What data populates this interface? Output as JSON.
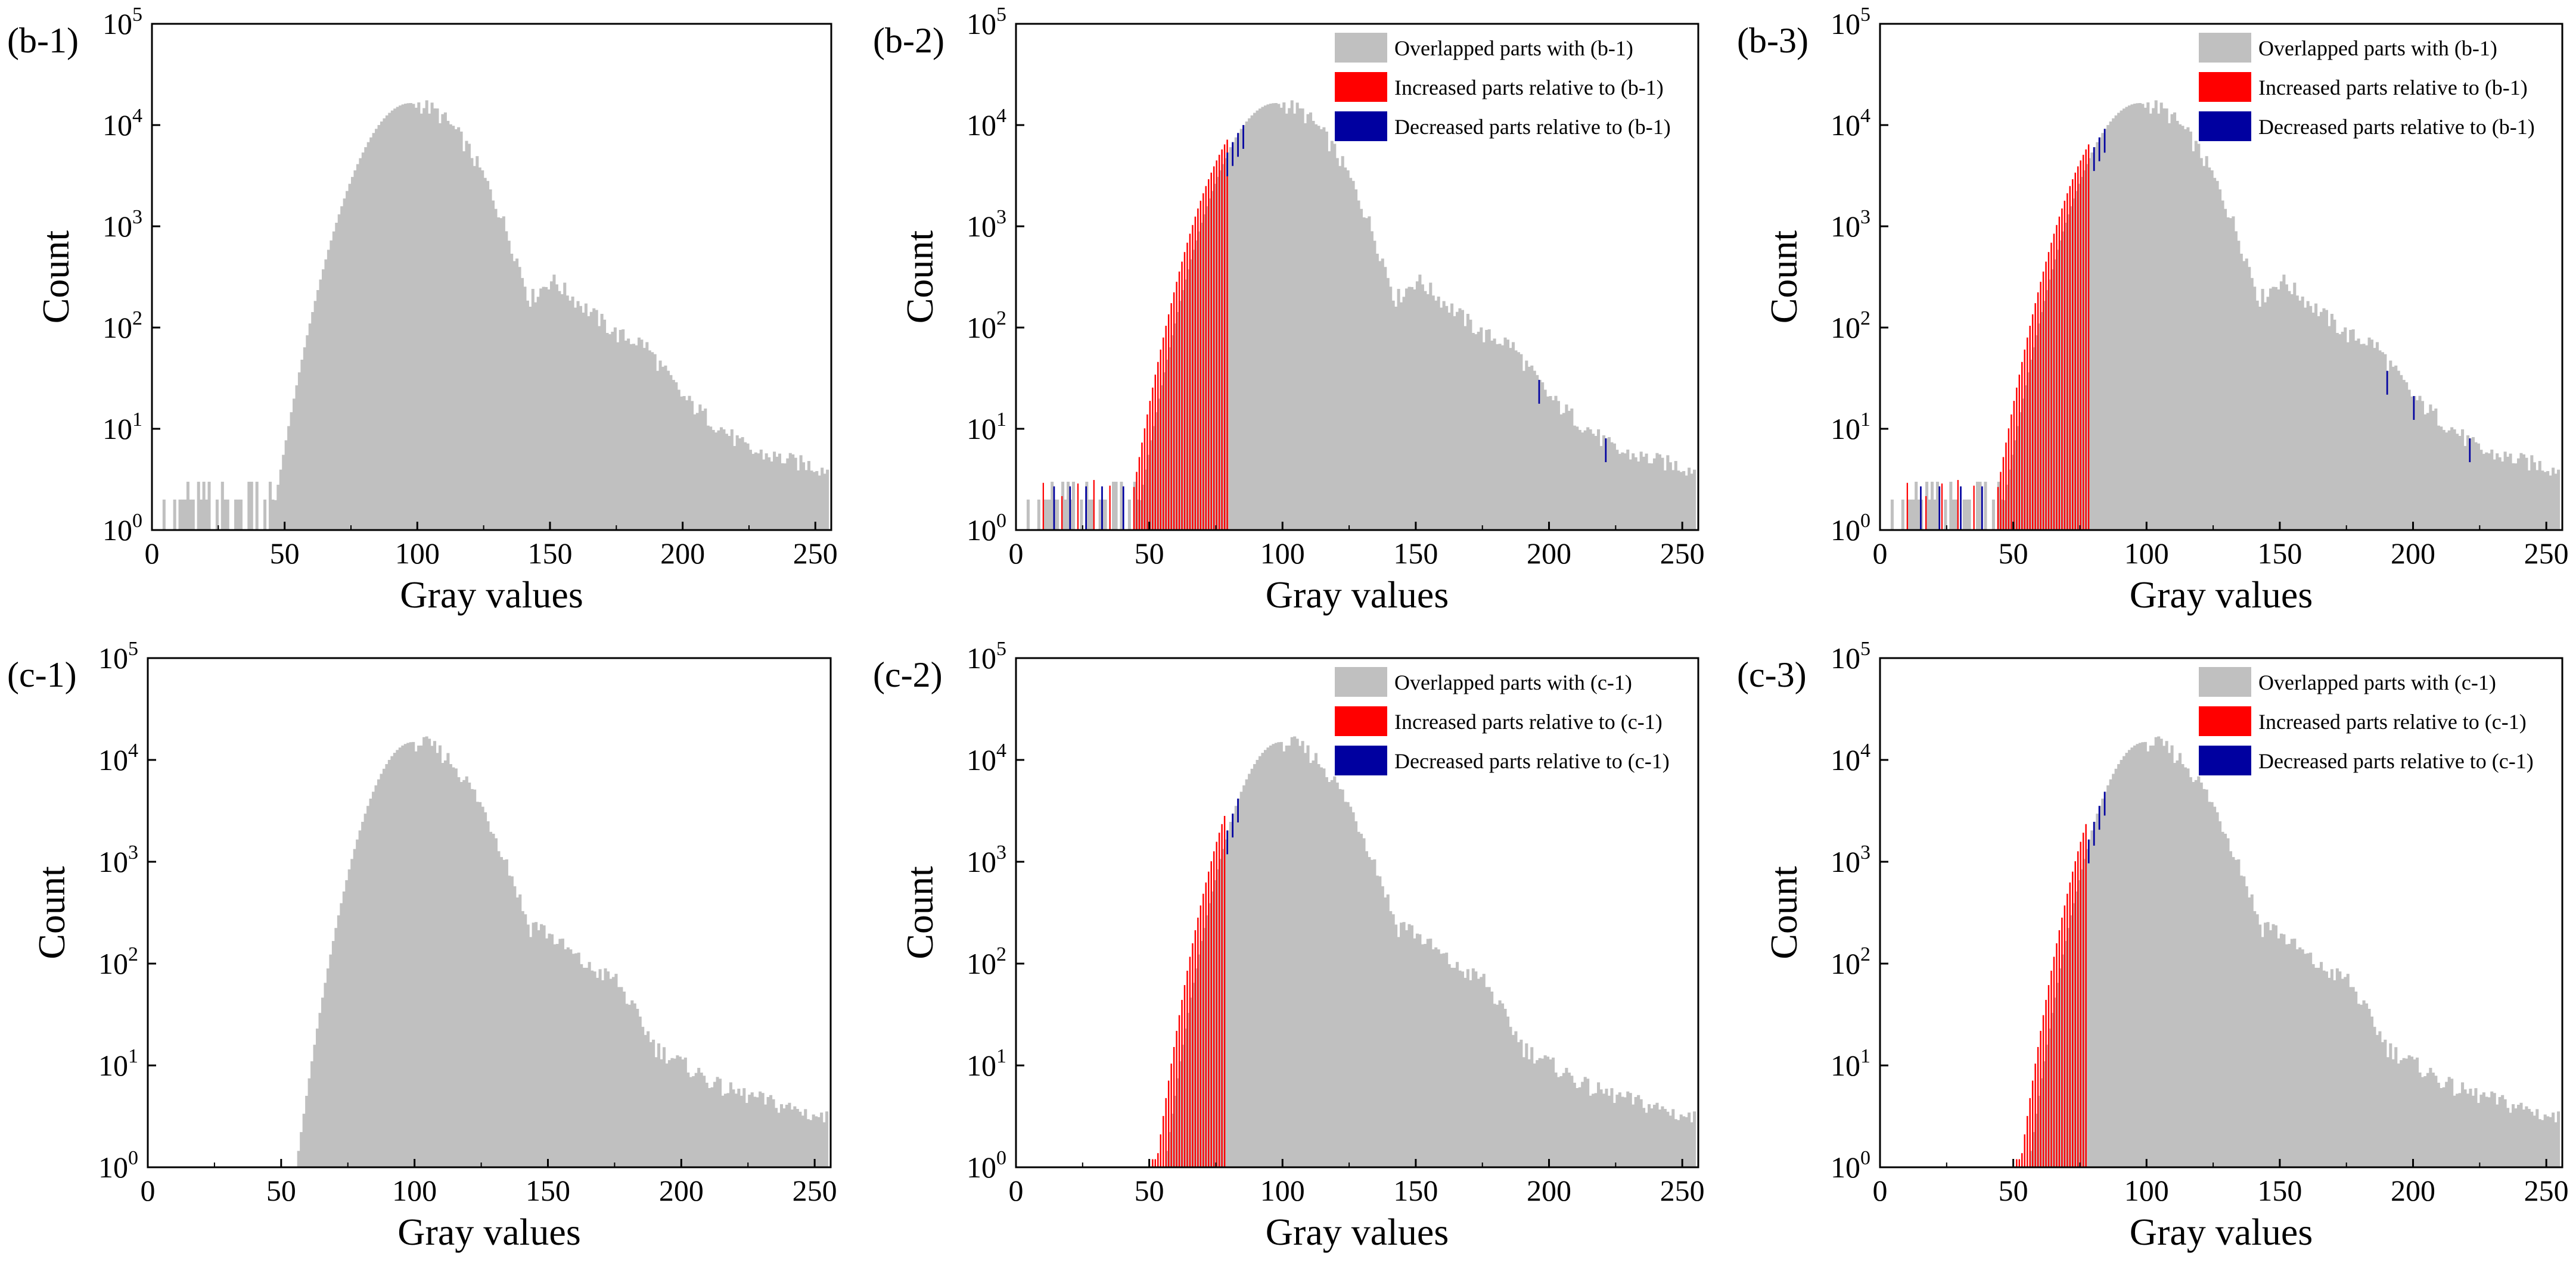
{
  "colors": {
    "overlap": "#c0c0c0",
    "increase": "#ff0000",
    "decrease": "#0000a0",
    "axis": "#000000"
  },
  "chart_data": [
    {
      "id": "b1",
      "panel_label": "(b-1)",
      "type": "histogram",
      "xlabel": "Gray values",
      "ylabel": "Count",
      "yscale": "log",
      "xlim": [
        0,
        256
      ],
      "ylim": [
        1,
        100000
      ],
      "xticks": [
        "0",
        "50",
        "100",
        "150",
        "200",
        "250"
      ],
      "yticks": [
        {
          "base": "10",
          "exp": "0"
        },
        {
          "base": "10",
          "exp": "1"
        },
        {
          "base": "10",
          "exp": "2"
        },
        {
          "base": "10",
          "exp": "3"
        },
        {
          "base": "10",
          "exp": "4"
        },
        {
          "base": "10",
          "exp": "5"
        }
      ],
      "legend": [],
      "distribution": {
        "peak_x": 97,
        "peak_count": 16500,
        "sigma_left": 12,
        "sigma_right": 15,
        "tail": [
          [
            150,
            300
          ],
          [
            175,
            85
          ],
          [
            185,
            70
          ],
          [
            200,
            20
          ],
          [
            225,
            6
          ],
          [
            254,
            4
          ]
        ],
        "start_x": 46,
        "noise_below": 1,
        "noise_above": 1
      },
      "diff": {
        "increase_from": 0,
        "increase_to": 0,
        "decrease_at": []
      }
    },
    {
      "id": "b2",
      "panel_label": "(b-2)",
      "type": "histogram",
      "xlabel": "Gray values",
      "ylabel": "Count",
      "yscale": "log",
      "xlim": [
        0,
        256
      ],
      "ylim": [
        1,
        100000
      ],
      "xticks": [
        "0",
        "50",
        "100",
        "150",
        "200",
        "250"
      ],
      "yticks": [
        {
          "base": "10",
          "exp": "0"
        },
        {
          "base": "10",
          "exp": "1"
        },
        {
          "base": "10",
          "exp": "2"
        },
        {
          "base": "10",
          "exp": "3"
        },
        {
          "base": "10",
          "exp": "4"
        },
        {
          "base": "10",
          "exp": "5"
        }
      ],
      "legend": [
        {
          "label": "Overlapped parts with (b-1)",
          "color": "#c0c0c0"
        },
        {
          "label": "Increased parts relative to (b-1)",
          "color": "#ff0000"
        },
        {
          "label": "Decreased parts relative to (b-1)",
          "color": "#0000a0"
        }
      ],
      "distribution": {
        "peak_x": 97,
        "peak_count": 16500,
        "sigma_left": 12,
        "sigma_right": 15,
        "tail": [
          [
            150,
            300
          ],
          [
            175,
            85
          ],
          [
            185,
            70
          ],
          [
            200,
            20
          ],
          [
            225,
            6
          ],
          [
            254,
            4
          ]
        ],
        "start_x": 46,
        "noise_below": 1,
        "noise_above": 1
      },
      "diff": {
        "increase_from": 44,
        "increase_to": 79,
        "decrease_at": [
          79,
          81,
          83,
          85,
          14,
          20,
          26,
          32,
          40,
          196,
          221
        ]
      }
    },
    {
      "id": "b3",
      "panel_label": "(b-3)",
      "type": "histogram",
      "xlabel": "Gray values",
      "ylabel": "Count",
      "yscale": "log",
      "xlim": [
        0,
        256
      ],
      "ylim": [
        1,
        100000
      ],
      "xticks": [
        "0",
        "50",
        "100",
        "150",
        "200",
        "250"
      ],
      "yticks": [
        {
          "base": "10",
          "exp": "0"
        },
        {
          "base": "10",
          "exp": "1"
        },
        {
          "base": "10",
          "exp": "2"
        },
        {
          "base": "10",
          "exp": "3"
        },
        {
          "base": "10",
          "exp": "4"
        },
        {
          "base": "10",
          "exp": "5"
        }
      ],
      "legend": [
        {
          "label": "Overlapped parts with (b-1)",
          "color": "#c0c0c0"
        },
        {
          "label": "Increased parts relative to (b-1)",
          "color": "#ff0000"
        },
        {
          "label": "Decreased parts relative to (b-1)",
          "color": "#0000a0"
        }
      ],
      "distribution": {
        "peak_x": 97,
        "peak_count": 16500,
        "sigma_left": 12,
        "sigma_right": 15,
        "tail": [
          [
            150,
            300
          ],
          [
            175,
            85
          ],
          [
            185,
            70
          ],
          [
            200,
            20
          ],
          [
            225,
            6
          ],
          [
            254,
            4
          ]
        ],
        "start_x": 46,
        "noise_below": 1,
        "noise_above": 1
      },
      "diff": {
        "increase_from": 44,
        "increase_to": 78,
        "decrease_at": [
          80,
          82,
          84,
          15,
          22,
          30,
          38,
          190,
          200,
          221
        ]
      }
    },
    {
      "id": "c1",
      "panel_label": "(c-1)",
      "type": "histogram",
      "xlabel": "Gray values",
      "ylabel": "Count",
      "yscale": "log",
      "xlim": [
        0,
        256
      ],
      "ylim": [
        1,
        100000
      ],
      "xticks": [
        "0",
        "50",
        "100",
        "150",
        "200",
        "250"
      ],
      "yticks": [
        {
          "base": "10",
          "exp": "0"
        },
        {
          "base": "10",
          "exp": "1"
        },
        {
          "base": "10",
          "exp": "2"
        },
        {
          "base": "10",
          "exp": "3"
        },
        {
          "base": "10",
          "exp": "4"
        },
        {
          "base": "10",
          "exp": "5"
        }
      ],
      "legend": [],
      "distribution": {
        "peak_x": 99,
        "peak_count": 15000,
        "sigma_left": 10,
        "sigma_right": 15,
        "tail": [
          [
            145,
            250
          ],
          [
            165,
            90
          ],
          [
            175,
            70
          ],
          [
            190,
            15
          ],
          [
            215,
            6
          ],
          [
            254,
            3
          ]
        ],
        "start_x": 55,
        "noise_below": 0,
        "noise_above": 1
      },
      "diff": {
        "increase_from": 0,
        "increase_to": 0,
        "decrease_at": []
      }
    },
    {
      "id": "c2",
      "panel_label": "(c-2)",
      "type": "histogram",
      "xlabel": "Gray values",
      "ylabel": "Count",
      "yscale": "log",
      "xlim": [
        0,
        256
      ],
      "ylim": [
        1,
        100000
      ],
      "xticks": [
        "0",
        "50",
        "100",
        "150",
        "200",
        "250"
      ],
      "yticks": [
        {
          "base": "10",
          "exp": "0"
        },
        {
          "base": "10",
          "exp": "1"
        },
        {
          "base": "10",
          "exp": "2"
        },
        {
          "base": "10",
          "exp": "3"
        },
        {
          "base": "10",
          "exp": "4"
        },
        {
          "base": "10",
          "exp": "5"
        }
      ],
      "legend": [
        {
          "label": "Overlapped parts with (c-1)",
          "color": "#c0c0c0"
        },
        {
          "label": "Increased parts relative to (c-1)",
          "color": "#ff0000"
        },
        {
          "label": "Decreased parts relative to (c-1)",
          "color": "#0000a0"
        }
      ],
      "distribution": {
        "peak_x": 99,
        "peak_count": 15000,
        "sigma_left": 10,
        "sigma_right": 15,
        "tail": [
          [
            145,
            250
          ],
          [
            165,
            90
          ],
          [
            175,
            70
          ],
          [
            190,
            15
          ],
          [
            215,
            6
          ],
          [
            254,
            3
          ]
        ],
        "start_x": 55,
        "noise_below": 0,
        "noise_above": 1
      },
      "diff": {
        "increase_from": 51,
        "increase_to": 78,
        "decrease_at": [
          79,
          81,
          83
        ]
      }
    },
    {
      "id": "c3",
      "panel_label": "(c-3)",
      "type": "histogram",
      "xlabel": "Gray values",
      "ylabel": "Count",
      "yscale": "log",
      "xlim": [
        0,
        256
      ],
      "ylim": [
        1,
        100000
      ],
      "xticks": [
        "0",
        "50",
        "100",
        "150",
        "200",
        "250"
      ],
      "yticks": [
        {
          "base": "10",
          "exp": "0"
        },
        {
          "base": "10",
          "exp": "1"
        },
        {
          "base": "10",
          "exp": "2"
        },
        {
          "base": "10",
          "exp": "3"
        },
        {
          "base": "10",
          "exp": "4"
        },
        {
          "base": "10",
          "exp": "5"
        }
      ],
      "legend": [
        {
          "label": "Overlapped parts with (c-1)",
          "color": "#c0c0c0"
        },
        {
          "label": "Increased parts relative to (c-1)",
          "color": "#ff0000"
        },
        {
          "label": "Decreased parts relative to (c-1)",
          "color": "#0000a0"
        }
      ],
      "distribution": {
        "peak_x": 99,
        "peak_count": 15000,
        "sigma_left": 10,
        "sigma_right": 15,
        "tail": [
          [
            145,
            250
          ],
          [
            165,
            90
          ],
          [
            175,
            70
          ],
          [
            190,
            15
          ],
          [
            215,
            6
          ],
          [
            254,
            3
          ]
        ],
        "start_x": 55,
        "noise_below": 0,
        "noise_above": 1
      },
      "diff": {
        "increase_from": 51,
        "increase_to": 77,
        "decrease_at": [
          78,
          80,
          82,
          84
        ]
      }
    }
  ]
}
